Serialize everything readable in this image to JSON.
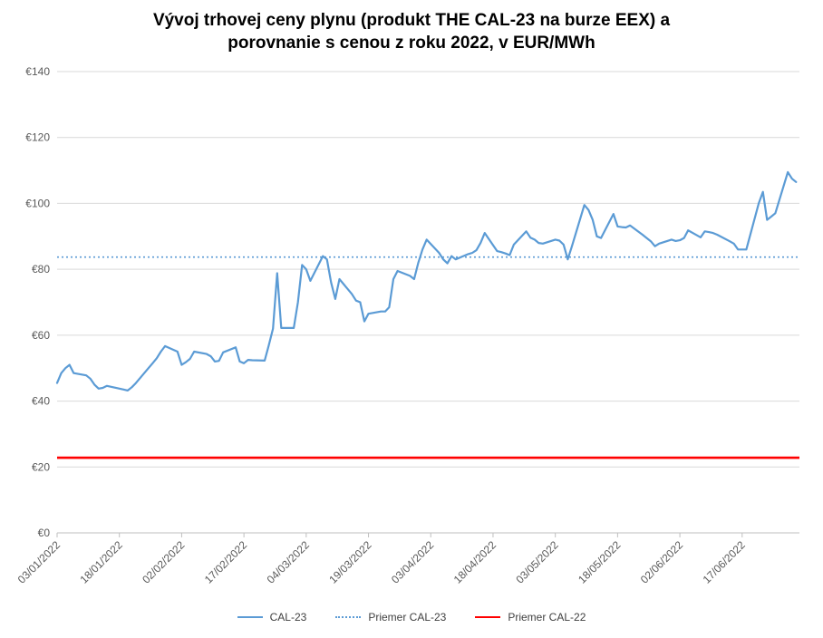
{
  "chart_data": {
    "type": "line",
    "title_line1": "Vývoj trhovej ceny plynu (produkt THE CAL-23 na burze EEX) a",
    "title_line2": "porovnanie s cenou z roku 2022, v EUR/MWh",
    "ylim": [
      0,
      140
    ],
    "y_ticks": [
      "€0",
      "€20",
      "€40",
      "€60",
      "€80",
      "€100",
      "€120",
      "€140"
    ],
    "y_tick_values": [
      0,
      20,
      40,
      60,
      80,
      100,
      120,
      140
    ],
    "x_start": "2022-01-03",
    "x_end": "2022-06-30",
    "x_ticks": [
      "03/01/2022",
      "18/01/2022",
      "02/02/2022",
      "17/02/2022",
      "04/03/2022",
      "19/03/2022",
      "03/04/2022",
      "18/04/2022",
      "03/05/2022",
      "18/05/2022",
      "02/06/2022",
      "17/06/2022"
    ],
    "grid": "horizontal",
    "legend_position": "bottom",
    "series": [
      {
        "name": "CAL-23",
        "style": "solid",
        "color": "#5B9BD5",
        "points": [
          [
            "2022-01-03",
            45.5
          ],
          [
            "2022-01-04",
            48.5
          ],
          [
            "2022-01-05",
            50
          ],
          [
            "2022-01-06",
            51
          ],
          [
            "2022-01-07",
            48.5
          ],
          [
            "2022-01-10",
            47.8
          ],
          [
            "2022-01-11",
            46.8
          ],
          [
            "2022-01-12",
            45
          ],
          [
            "2022-01-13",
            43.8
          ],
          [
            "2022-01-14",
            44
          ],
          [
            "2022-01-15",
            44.6
          ],
          [
            "2022-01-18",
            43.8
          ],
          [
            "2022-01-19",
            43.5
          ],
          [
            "2022-01-20",
            43.2
          ],
          [
            "2022-01-21",
            44.2
          ],
          [
            "2022-01-22",
            45.5
          ],
          [
            "2022-01-25",
            50
          ],
          [
            "2022-01-26",
            51.5
          ],
          [
            "2022-01-27",
            53
          ],
          [
            "2022-01-28",
            55
          ],
          [
            "2022-01-29",
            56.7
          ],
          [
            "2022-02-01",
            55
          ],
          [
            "2022-02-02",
            51
          ],
          [
            "2022-02-03",
            51.8
          ],
          [
            "2022-02-04",
            52.8
          ],
          [
            "2022-02-05",
            55
          ],
          [
            "2022-02-08",
            54.3
          ],
          [
            "2022-02-09",
            53.6
          ],
          [
            "2022-02-10",
            52
          ],
          [
            "2022-02-11",
            52.2
          ],
          [
            "2022-02-12",
            54.8
          ],
          [
            "2022-02-15",
            56.3
          ],
          [
            "2022-02-16",
            52
          ],
          [
            "2022-02-17",
            51.5
          ],
          [
            "2022-02-18",
            52.5
          ],
          [
            "2022-02-19",
            52.4
          ],
          [
            "2022-02-22",
            52.3
          ],
          [
            "2022-02-23",
            57
          ],
          [
            "2022-02-24",
            62
          ],
          [
            "2022-02-25",
            78.8
          ],
          [
            "2022-02-26",
            62.2
          ],
          [
            "2022-03-01",
            62.2
          ],
          [
            "2022-03-02",
            70
          ],
          [
            "2022-03-03",
            81.3
          ],
          [
            "2022-03-04",
            80
          ],
          [
            "2022-03-05",
            76.5
          ],
          [
            "2022-03-08",
            84
          ],
          [
            "2022-03-09",
            83
          ],
          [
            "2022-03-10",
            76
          ],
          [
            "2022-03-11",
            71
          ],
          [
            "2022-03-12",
            77
          ],
          [
            "2022-03-15",
            72.5
          ],
          [
            "2022-03-16",
            70.5
          ],
          [
            "2022-03-17",
            70
          ],
          [
            "2022-03-18",
            64.2
          ],
          [
            "2022-03-19",
            66.5
          ],
          [
            "2022-03-22",
            67.2
          ],
          [
            "2022-03-23",
            67.2
          ],
          [
            "2022-03-24",
            68.5
          ],
          [
            "2022-03-25",
            77
          ],
          [
            "2022-03-26",
            79.5
          ],
          [
            "2022-03-29",
            78
          ],
          [
            "2022-03-30",
            77
          ],
          [
            "2022-03-31",
            82
          ],
          [
            "2022-04-01",
            86
          ],
          [
            "2022-04-02",
            89
          ],
          [
            "2022-04-05",
            85
          ],
          [
            "2022-04-06",
            83
          ],
          [
            "2022-04-07",
            81.8
          ],
          [
            "2022-04-08",
            84
          ],
          [
            "2022-04-09",
            83
          ],
          [
            "2022-04-12",
            84.6
          ],
          [
            "2022-04-13",
            85
          ],
          [
            "2022-04-14",
            85.8
          ],
          [
            "2022-04-15",
            88
          ],
          [
            "2022-04-16",
            91
          ],
          [
            "2022-04-19",
            85.5
          ],
          [
            "2022-04-20",
            85.2
          ],
          [
            "2022-04-21",
            84.8
          ],
          [
            "2022-04-22",
            84.3
          ],
          [
            "2022-04-23",
            87.5
          ],
          [
            "2022-04-26",
            91.5
          ],
          [
            "2022-04-27",
            89.6
          ],
          [
            "2022-04-28",
            89
          ],
          [
            "2022-04-29",
            88
          ],
          [
            "2022-04-30",
            87.8
          ],
          [
            "2022-05-03",
            89
          ],
          [
            "2022-05-04",
            88.7
          ],
          [
            "2022-05-05",
            87.5
          ],
          [
            "2022-05-06",
            83
          ],
          [
            "2022-05-07",
            87
          ],
          [
            "2022-05-10",
            99.5
          ],
          [
            "2022-05-11",
            98
          ],
          [
            "2022-05-12",
            95
          ],
          [
            "2022-05-13",
            90
          ],
          [
            "2022-05-14",
            89.5
          ],
          [
            "2022-05-17",
            96.8
          ],
          [
            "2022-05-18",
            93
          ],
          [
            "2022-05-19",
            92.8
          ],
          [
            "2022-05-20",
            92.7
          ],
          [
            "2022-05-21",
            93.3
          ],
          [
            "2022-05-24",
            90.5
          ],
          [
            "2022-05-25",
            89.5
          ],
          [
            "2022-05-26",
            88.5
          ],
          [
            "2022-05-27",
            87
          ],
          [
            "2022-05-28",
            87.8
          ],
          [
            "2022-05-31",
            89
          ],
          [
            "2022-06-01",
            88.6
          ],
          [
            "2022-06-02",
            88.8
          ],
          [
            "2022-06-03",
            89.5
          ],
          [
            "2022-06-04",
            91.8
          ],
          [
            "2022-06-07",
            89.7
          ],
          [
            "2022-06-08",
            91.5
          ],
          [
            "2022-06-09",
            91.3
          ],
          [
            "2022-06-10",
            91
          ],
          [
            "2022-06-11",
            90.5
          ],
          [
            "2022-06-14",
            88.5
          ],
          [
            "2022-06-15",
            87.8
          ],
          [
            "2022-06-16",
            86
          ],
          [
            "2022-06-17",
            86
          ],
          [
            "2022-06-18",
            86
          ],
          [
            "2022-06-21",
            100
          ],
          [
            "2022-06-22",
            103.5
          ],
          [
            "2022-06-23",
            95
          ],
          [
            "2022-06-24",
            96
          ],
          [
            "2022-06-25",
            97
          ],
          [
            "2022-06-28",
            109.5
          ],
          [
            "2022-06-29",
            107.5
          ],
          [
            "2022-06-30",
            106.5
          ]
        ]
      },
      {
        "name": "Priemer CAL-23",
        "style": "dotted",
        "color": "#5B9BD5",
        "value": 83.7
      },
      {
        "name": "Priemer CAL-22",
        "style": "solid",
        "color": "#FF0000",
        "value": 22.8
      }
    ]
  }
}
